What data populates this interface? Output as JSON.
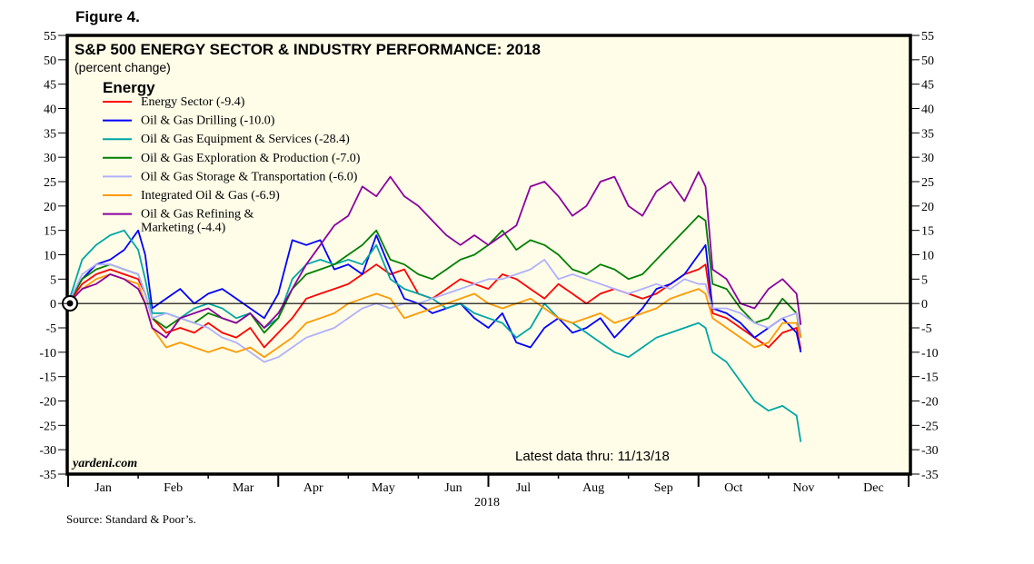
{
  "figure_label": "Figure 4.",
  "source": "Source: Standard & Poor’s.",
  "watermark": "yardeni.com",
  "latest": "Latest data thru: 11/13/18",
  "colors": {
    "background": "#fffde8",
    "frame": "#000000"
  },
  "chart_data": {
    "type": "line",
    "title": "S&P 500 ENERGY SECTOR & INDUSTRY PERFORMANCE: 2018",
    "subtitle": "(percent change)",
    "legend_title": "Energy",
    "legend_placement": "top-left",
    "xlabel": "2018",
    "ylabel": "",
    "ylim": [
      -35,
      55
    ],
    "xlim_months": [
      0,
      12
    ],
    "y_ticks": [
      55,
      50,
      45,
      40,
      35,
      30,
      25,
      20,
      15,
      10,
      5,
      0,
      -5,
      -10,
      -15,
      -20,
      -25,
      -30,
      -35
    ],
    "x_tick_labels": [
      "Jan",
      "Feb",
      "Mar",
      "Apr",
      "May",
      "Jun",
      "Jul",
      "Aug",
      "Sep",
      "Oct",
      "Nov",
      "Dec"
    ],
    "grid": false,
    "zero_line": true,
    "x_units": "months since Jan 1",
    "series": [
      {
        "name": "Energy Sector (-9.4)",
        "color": "#ff0000",
        "x": [
          0,
          0.2,
          0.4,
          0.6,
          0.8,
          1.0,
          1.1,
          1.2,
          1.4,
          1.6,
          1.8,
          2.0,
          2.2,
          2.4,
          2.6,
          2.8,
          3.0,
          3.2,
          3.4,
          3.6,
          3.8,
          4.0,
          4.2,
          4.4,
          4.6,
          4.8,
          5.0,
          5.2,
          5.4,
          5.6,
          5.8,
          6.0,
          6.2,
          6.4,
          6.6,
          6.8,
          7.0,
          7.2,
          7.4,
          7.6,
          7.8,
          8.0,
          8.2,
          8.4,
          8.6,
          8.8,
          9.0,
          9.1,
          9.2,
          9.4,
          9.6,
          9.8,
          10.0,
          10.2,
          10.4,
          10.46
        ],
        "values": [
          0,
          4,
          6,
          7,
          6,
          5,
          2,
          -3,
          -6,
          -5,
          -6,
          -4,
          -6,
          -7,
          -5,
          -9,
          -6,
          -3,
          1,
          2,
          3,
          4,
          6,
          8,
          6,
          7,
          2,
          1,
          3,
          5,
          4,
          3,
          6,
          5,
          3,
          1,
          4,
          2,
          0,
          2,
          3,
          2,
          1,
          2,
          4,
          6,
          7,
          8,
          -2,
          -3,
          -5,
          -7,
          -9,
          -6,
          -5,
          -9.4
        ]
      },
      {
        "name": "Oil & Gas Drilling (-10.0)",
        "color": "#0000ff",
        "x": [
          0,
          0.2,
          0.4,
          0.6,
          0.8,
          1.0,
          1.1,
          1.2,
          1.4,
          1.6,
          1.8,
          2.0,
          2.2,
          2.4,
          2.6,
          2.8,
          3.0,
          3.2,
          3.4,
          3.6,
          3.8,
          4.0,
          4.2,
          4.4,
          4.6,
          4.8,
          5.0,
          5.2,
          5.4,
          5.6,
          5.8,
          6.0,
          6.2,
          6.4,
          6.6,
          6.8,
          7.0,
          7.2,
          7.4,
          7.6,
          7.8,
          8.0,
          8.2,
          8.4,
          8.6,
          8.8,
          9.0,
          9.1,
          9.2,
          9.4,
          9.6,
          9.8,
          10.0,
          10.2,
          10.4,
          10.46
        ],
        "values": [
          0,
          5,
          8,
          9,
          11,
          15,
          10,
          -1,
          1,
          3,
          0,
          2,
          3,
          1,
          -1,
          -3,
          2,
          13,
          12,
          13,
          7,
          8,
          6,
          14,
          7,
          1,
          0,
          -2,
          -1,
          0,
          -3,
          -5,
          -2,
          -8,
          -9,
          -5,
          -3,
          -6,
          -5,
          -3,
          -7,
          -4,
          -1,
          3,
          4,
          6,
          10,
          12,
          -1,
          -2,
          -4,
          -7,
          -5,
          -3,
          -6,
          -10
        ]
      },
      {
        "name": "Oil & Gas Equipment & Services (-28.4)",
        "color": "#00a6a6",
        "x": [
          0,
          0.2,
          0.4,
          0.6,
          0.8,
          1.0,
          1.1,
          1.2,
          1.4,
          1.6,
          1.8,
          2.0,
          2.2,
          2.4,
          2.6,
          2.8,
          3.0,
          3.2,
          3.4,
          3.6,
          3.8,
          4.0,
          4.2,
          4.4,
          4.6,
          4.8,
          5.0,
          5.2,
          5.4,
          5.6,
          5.8,
          6.0,
          6.2,
          6.4,
          6.6,
          6.8,
          7.0,
          7.2,
          7.4,
          7.6,
          7.8,
          8.0,
          8.2,
          8.4,
          8.6,
          8.8,
          9.0,
          9.1,
          9.2,
          9.4,
          9.6,
          9.8,
          10.0,
          10.2,
          10.4,
          10.46
        ],
        "values": [
          0,
          9,
          12,
          14,
          15,
          11,
          5,
          -2,
          -2,
          -3,
          -1,
          0,
          -1,
          -3,
          -2,
          -5,
          -3,
          5,
          8,
          9,
          8,
          9,
          8,
          12,
          5,
          3,
          2,
          1,
          -1,
          0,
          -2,
          -3,
          -4,
          -7,
          -5,
          0,
          -3,
          -4,
          -6,
          -8,
          -10,
          -11,
          -9,
          -7,
          -6,
          -5,
          -4,
          -5,
          -10,
          -12,
          -16,
          -20,
          -22,
          -21,
          -23,
          -28.4
        ]
      },
      {
        "name": "Oil & Gas Exploration & Production (-7.0)",
        "color": "#008000",
        "x": [
          0,
          0.2,
          0.4,
          0.6,
          0.8,
          1.0,
          1.1,
          1.2,
          1.4,
          1.6,
          1.8,
          2.0,
          2.2,
          2.4,
          2.6,
          2.8,
          3.0,
          3.2,
          3.4,
          3.6,
          3.8,
          4.0,
          4.2,
          4.4,
          4.6,
          4.8,
          5.0,
          5.2,
          5.4,
          5.6,
          5.8,
          6.0,
          6.2,
          6.4,
          6.6,
          6.8,
          7.0,
          7.2,
          7.4,
          7.6,
          7.8,
          8.0,
          8.2,
          8.4,
          8.6,
          8.8,
          9.0,
          9.1,
          9.2,
          9.4,
          9.6,
          9.8,
          10.0,
          10.2,
          10.4,
          10.46
        ],
        "values": [
          0,
          5,
          7,
          8,
          7,
          6,
          2,
          -3,
          -5,
          -3,
          -4,
          -2,
          -3,
          -4,
          -2,
          -6,
          -3,
          3,
          6,
          7,
          8,
          10,
          12,
          15,
          9,
          8,
          6,
          5,
          7,
          9,
          10,
          12,
          15,
          11,
          13,
          12,
          10,
          7,
          6,
          8,
          7,
          5,
          6,
          9,
          12,
          15,
          18,
          17,
          4,
          3,
          -1,
          -4,
          -3,
          1,
          -2,
          -7
        ]
      },
      {
        "name": "Oil & Gas Storage & Transportation (-6.0)",
        "color": "#b0b0ff",
        "x": [
          0,
          0.2,
          0.4,
          0.6,
          0.8,
          1.0,
          1.1,
          1.2,
          1.4,
          1.6,
          1.8,
          2.0,
          2.2,
          2.4,
          2.6,
          2.8,
          3.0,
          3.2,
          3.4,
          3.6,
          3.8,
          4.0,
          4.2,
          4.4,
          4.6,
          4.8,
          5.0,
          5.2,
          5.4,
          5.6,
          5.8,
          6.0,
          6.2,
          6.4,
          6.6,
          6.8,
          7.0,
          7.2,
          7.4,
          7.6,
          7.8,
          8.0,
          8.2,
          8.4,
          8.6,
          8.8,
          9.0,
          9.1,
          9.2,
          9.4,
          9.6,
          9.8,
          10.0,
          10.2,
          10.4,
          10.46
        ],
        "values": [
          0,
          6,
          8,
          8,
          7,
          6,
          2,
          -3,
          -2,
          -3,
          -4,
          -5,
          -7,
          -8,
          -10,
          -12,
          -11,
          -9,
          -7,
          -6,
          -5,
          -3,
          -1,
          0,
          -1,
          0,
          0,
          1,
          2,
          3,
          4,
          5,
          5,
          6,
          7,
          9,
          5,
          6,
          5,
          4,
          3,
          2,
          3,
          4,
          3,
          5,
          4,
          4,
          -1,
          -1,
          -2,
          -4,
          -5,
          -3,
          -2,
          -6
        ]
      },
      {
        "name": "Integrated Oil & Gas (-6.9)",
        "color": "#ff9900",
        "x": [
          0,
          0.2,
          0.4,
          0.6,
          0.8,
          1.0,
          1.1,
          1.2,
          1.4,
          1.6,
          1.8,
          2.0,
          2.2,
          2.4,
          2.6,
          2.8,
          3.0,
          3.2,
          3.4,
          3.6,
          3.8,
          4.0,
          4.2,
          4.4,
          4.6,
          4.8,
          5.0,
          5.2,
          5.4,
          5.6,
          5.8,
          6.0,
          6.2,
          6.4,
          6.6,
          6.8,
          7.0,
          7.2,
          7.4,
          7.6,
          7.8,
          8.0,
          8.2,
          8.4,
          8.6,
          8.8,
          9.0,
          9.1,
          9.2,
          9.4,
          9.6,
          9.8,
          10.0,
          10.2,
          10.4,
          10.46
        ],
        "values": [
          0,
          3,
          5,
          6,
          5,
          4,
          0,
          -5,
          -9,
          -8,
          -9,
          -10,
          -9,
          -10,
          -9,
          -11,
          -9,
          -7,
          -4,
          -3,
          -2,
          0,
          1,
          2,
          1,
          -3,
          -2,
          -1,
          0,
          1,
          2,
          0,
          -1,
          0,
          1,
          -1,
          -3,
          -4,
          -3,
          -2,
          -4,
          -3,
          -2,
          -1,
          1,
          2,
          3,
          2,
          -3,
          -5,
          -7,
          -9,
          -8,
          -4,
          -4,
          -6.9
        ]
      },
      {
        "name": "Oil & Gas Refining & Marketing (-4.4)",
        "color": "#8b00a0",
        "x": [
          0,
          0.2,
          0.4,
          0.6,
          0.8,
          1.0,
          1.1,
          1.2,
          1.4,
          1.6,
          1.8,
          2.0,
          2.2,
          2.4,
          2.6,
          2.8,
          3.0,
          3.2,
          3.4,
          3.6,
          3.8,
          4.0,
          4.2,
          4.4,
          4.6,
          4.8,
          5.0,
          5.2,
          5.4,
          5.6,
          5.8,
          6.0,
          6.2,
          6.4,
          6.6,
          6.8,
          7.0,
          7.2,
          7.4,
          7.6,
          7.8,
          8.0,
          8.2,
          8.4,
          8.6,
          8.8,
          9.0,
          9.1,
          9.2,
          9.4,
          9.6,
          9.8,
          10.0,
          10.2,
          10.4,
          10.46
        ],
        "values": [
          0,
          3,
          4,
          6,
          5,
          3,
          0,
          -5,
          -7,
          -3,
          -2,
          -1,
          -3,
          -4,
          -2,
          -5,
          -2,
          3,
          8,
          12,
          16,
          18,
          24,
          22,
          26,
          22,
          20,
          17,
          14,
          12,
          14,
          12,
          14,
          16,
          24,
          25,
          22,
          18,
          20,
          25,
          26,
          20,
          18,
          23,
          25,
          21,
          27,
          24,
          7,
          5,
          0,
          -1,
          3,
          5,
          2,
          -4.4
        ]
      }
    ]
  }
}
